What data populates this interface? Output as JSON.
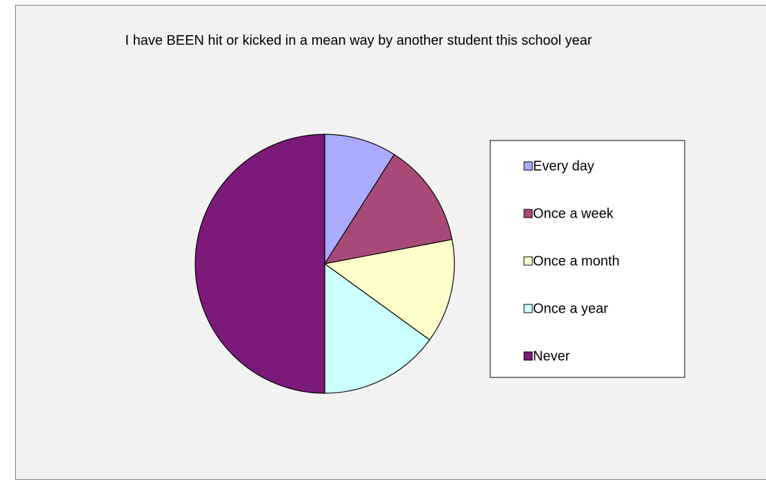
{
  "chart_data": {
    "type": "pie",
    "title": "I have BEEN hit or kicked in a mean way by another student this school year",
    "categories": [
      "Every day",
      "Once a week",
      "Once a month",
      "Once a year",
      "Never"
    ],
    "values": [
      9,
      13,
      13,
      15,
      50
    ],
    "colors": [
      "#aaaaff",
      "#a84a78",
      "#ffffcc",
      "#ccffff",
      "#7b1a78"
    ],
    "legend": "right"
  }
}
